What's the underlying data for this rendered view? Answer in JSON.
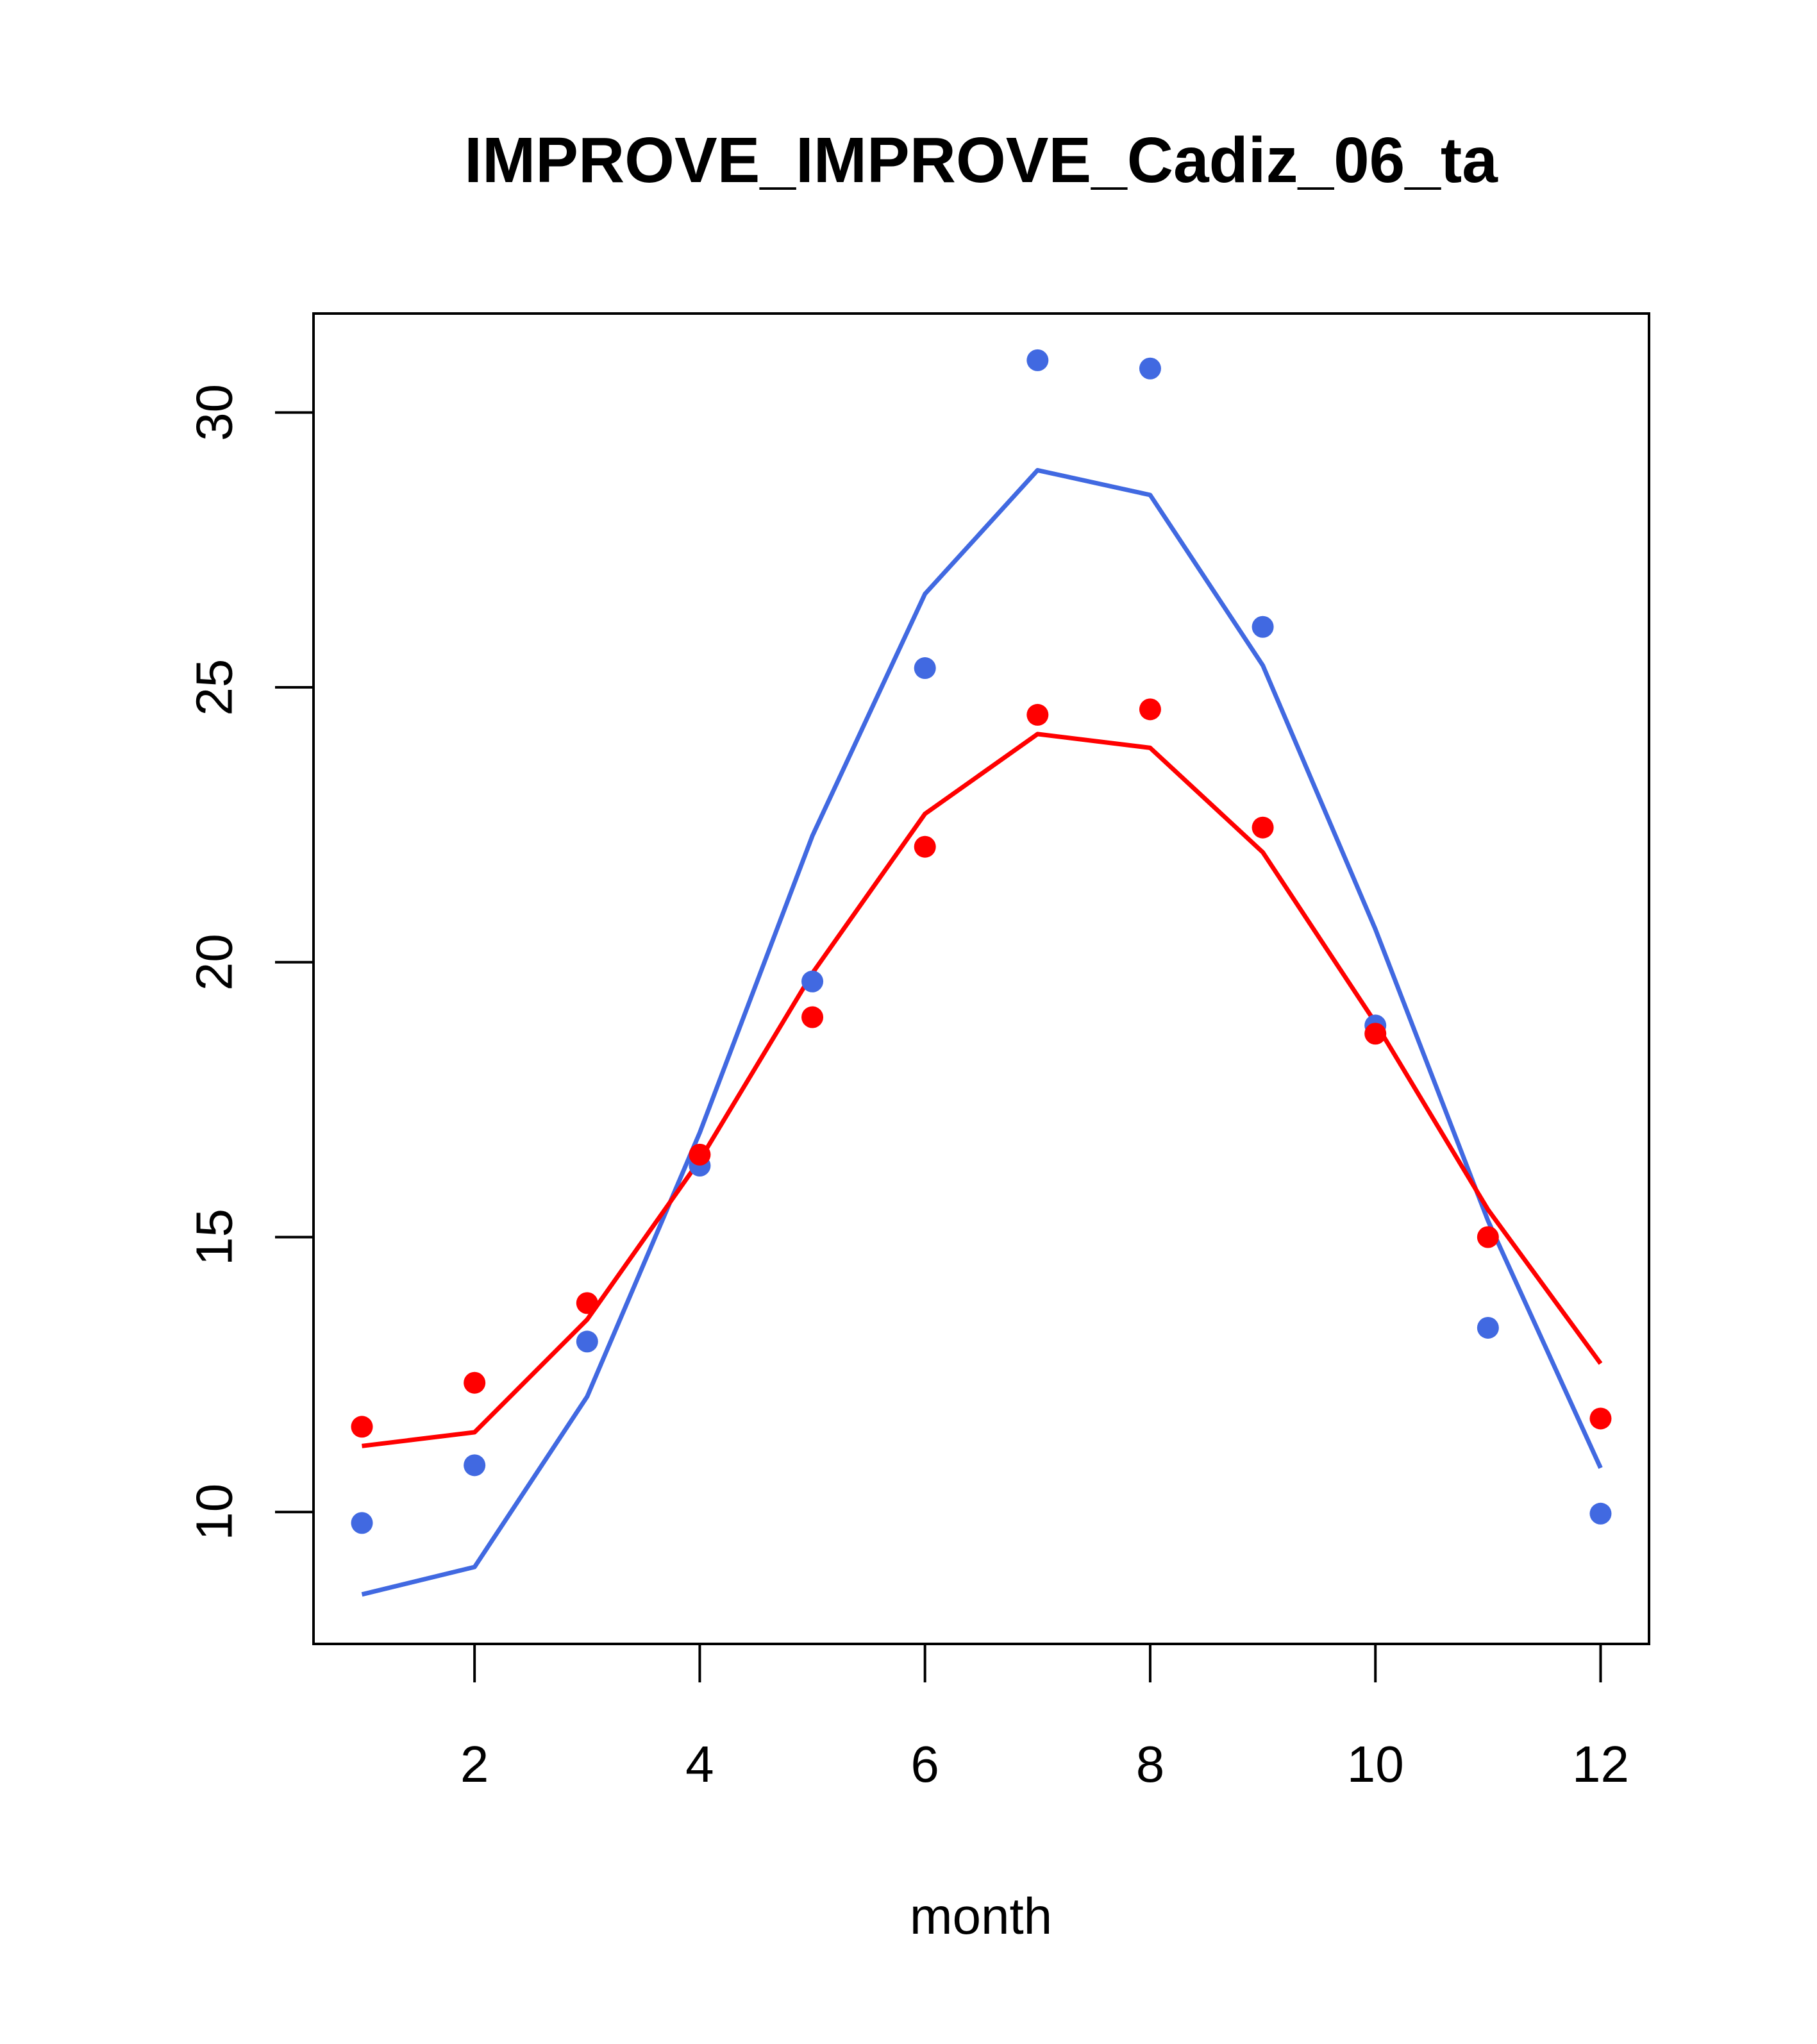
{
  "chart_data": {
    "type": "line",
    "title": "IMPROVE_IMPROVE_Cadiz_06_ta",
    "xlabel": "month",
    "ylabel": "",
    "xlim": [
      0.57,
      12.43
    ],
    "ylim": [
      7.6,
      31.8
    ],
    "x_ticks": [
      2,
      4,
      6,
      8,
      10,
      12
    ],
    "y_ticks": [
      10,
      15,
      20,
      25,
      30
    ],
    "grid": false,
    "legend": "none",
    "x": [
      1,
      2,
      3,
      4,
      5,
      6,
      7,
      8,
      9,
      10,
      11,
      12
    ],
    "series": [
      {
        "color": "#4169E1",
        "points": [
          9.8,
          10.85,
          13.1,
          16.3,
          19.65,
          25.35,
          30.95,
          30.8,
          26.1,
          18.85,
          13.35,
          9.97
        ],
        "line": [
          8.5,
          9.0,
          12.1,
          16.9,
          22.3,
          26.7,
          28.95,
          28.5,
          25.4,
          20.6,
          15.3,
          10.8
        ]
      },
      {
        "color": "#FF0000",
        "points": [
          11.55,
          12.35,
          13.8,
          16.5,
          19.0,
          22.1,
          24.5,
          24.6,
          22.45,
          18.7,
          15.0,
          11.7
        ],
        "line": [
          11.2,
          11.45,
          13.5,
          16.4,
          19.8,
          22.7,
          24.15,
          23.9,
          22.0,
          18.9,
          15.5,
          12.7
        ]
      }
    ]
  }
}
